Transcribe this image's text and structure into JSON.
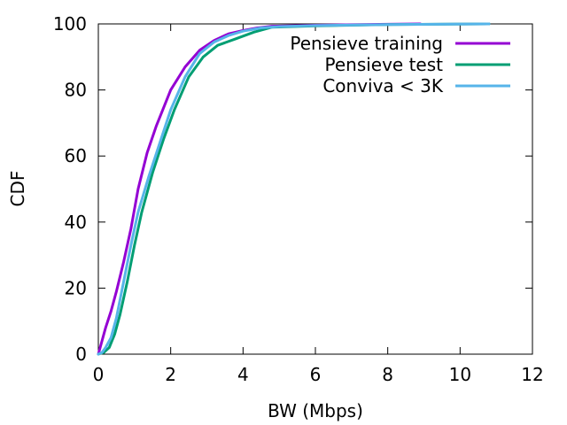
{
  "chart_data": {
    "type": "line",
    "title": "",
    "xlabel": "BW (Mbps)",
    "ylabel": "CDF",
    "xlim": [
      0,
      12
    ],
    "ylim": [
      0,
      100
    ],
    "xticks": [
      "0",
      "2",
      "4",
      "6",
      "8",
      "10",
      "12"
    ],
    "yticks": [
      "0",
      "20",
      "40",
      "60",
      "80",
      "100"
    ],
    "grid": false,
    "legend_position": "top-right",
    "series": [
      {
        "name": "Pensieve training",
        "color": "#9400d3",
        "x": [
          0.0,
          0.1,
          0.2,
          0.35,
          0.5,
          0.7,
          0.9,
          1.1,
          1.35,
          1.6,
          2.0,
          2.4,
          2.8,
          3.2,
          3.6,
          4.0,
          4.4,
          4.8,
          6.0,
          8.0,
          8.9
        ],
        "y": [
          0,
          4,
          8,
          13,
          19,
          28,
          38,
          50,
          61,
          69,
          80,
          87,
          92,
          95,
          97,
          98,
          98.8,
          99.3,
          99.6,
          99.9,
          100
        ]
      },
      {
        "name": "Pensieve test",
        "color": "#009e73",
        "x": [
          0.0,
          0.15,
          0.3,
          0.45,
          0.6,
          0.8,
          1.0,
          1.2,
          1.5,
          1.8,
          2.1,
          2.5,
          2.9,
          3.3,
          3.8,
          4.3,
          4.8,
          6.0,
          8.0,
          10.8
        ],
        "y": [
          0,
          0.5,
          2,
          6,
          12,
          22,
          33,
          43,
          55,
          65,
          74,
          84,
          90,
          93.5,
          95.5,
          97.5,
          99,
          99.4,
          99.8,
          100
        ]
      },
      {
        "name": "Conviva < 3K",
        "color": "#56b4e9",
        "x": [
          0.0,
          0.1,
          0.2,
          0.35,
          0.5,
          0.7,
          0.9,
          1.1,
          1.4,
          1.7,
          2.0,
          2.4,
          2.8,
          3.2,
          3.6,
          4.0,
          4.5,
          5.0,
          6.0,
          8.0,
          10.8
        ],
        "y": [
          0,
          0.5,
          2,
          5,
          11,
          22,
          33,
          43,
          54,
          64,
          74,
          84,
          91,
          94.5,
          96.5,
          97.8,
          98.8,
          99.2,
          99.5,
          99.8,
          100
        ]
      }
    ]
  }
}
